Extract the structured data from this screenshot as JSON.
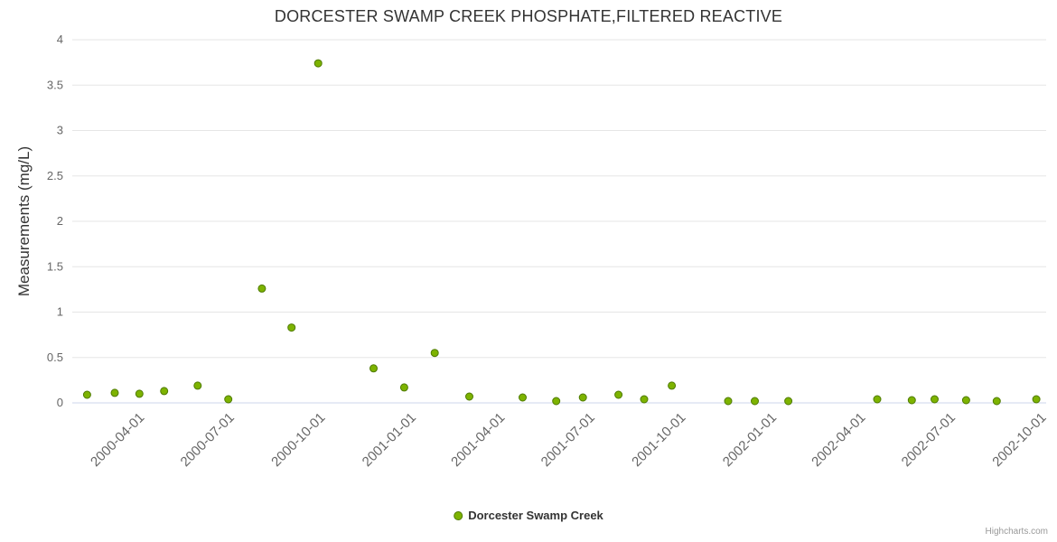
{
  "credits": "Highcharts.com",
  "colors": {
    "title": "#333333",
    "axis_label": "#666666",
    "grid": "#e6e6e6",
    "axis_line": "#ccd6eb",
    "legend_text": "#333333",
    "credits_text": "#999999"
  },
  "chart_data": {
    "type": "scatter",
    "title": "DORCESTER SWAMP CREEK PHOSPHATE,FILTERED REACTIVE",
    "xlabel": "",
    "ylabel": "Measurements (mg/L)",
    "ylim": [
      0,
      4
    ],
    "y_ticks": [
      0,
      0.5,
      1,
      1.5,
      2,
      2.5,
      3,
      3.5,
      4
    ],
    "x_ticks": [
      "2000-04-01",
      "2000-07-01",
      "2000-10-01",
      "2001-01-01",
      "2001-04-01",
      "2001-07-01",
      "2001-10-01",
      "2002-01-01",
      "2002-04-01",
      "2002-07-01",
      "2002-10-01"
    ],
    "x_range": [
      "2000-01-22",
      "2002-10-04"
    ],
    "grid": true,
    "legend_position": "bottom-center",
    "series": [
      {
        "name": "Dorcester Swamp Creek",
        "color": "#7db300",
        "marker_stroke": "#4e7a00",
        "data": [
          [
            "2000-02-06",
            0.09
          ],
          [
            "2000-03-05",
            0.11
          ],
          [
            "2000-03-30",
            0.1
          ],
          [
            "2000-04-24",
            0.13
          ],
          [
            "2000-05-28",
            0.19
          ],
          [
            "2000-06-28",
            0.04
          ],
          [
            "2000-08-01",
            1.26
          ],
          [
            "2000-08-31",
            0.83
          ],
          [
            "2000-09-27",
            3.74
          ],
          [
            "2000-11-22",
            0.38
          ],
          [
            "2000-12-23",
            0.17
          ],
          [
            "2001-01-23",
            0.55
          ],
          [
            "2001-02-27",
            0.07
          ],
          [
            "2001-04-22",
            0.06
          ],
          [
            "2001-05-26",
            0.02
          ],
          [
            "2001-06-22",
            0.06
          ],
          [
            "2001-07-28",
            0.09
          ],
          [
            "2001-08-23",
            0.04
          ],
          [
            "2001-09-20",
            0.19
          ],
          [
            "2001-11-16",
            0.02
          ],
          [
            "2001-12-13",
            0.02
          ],
          [
            "2002-01-16",
            0.02
          ],
          [
            "2002-04-16",
            0.04
          ],
          [
            "2002-05-21",
            0.03
          ],
          [
            "2002-06-13",
            0.04
          ],
          [
            "2002-07-15",
            0.03
          ],
          [
            "2002-08-15",
            0.02
          ],
          [
            "2002-09-24",
            0.04
          ]
        ]
      }
    ]
  }
}
